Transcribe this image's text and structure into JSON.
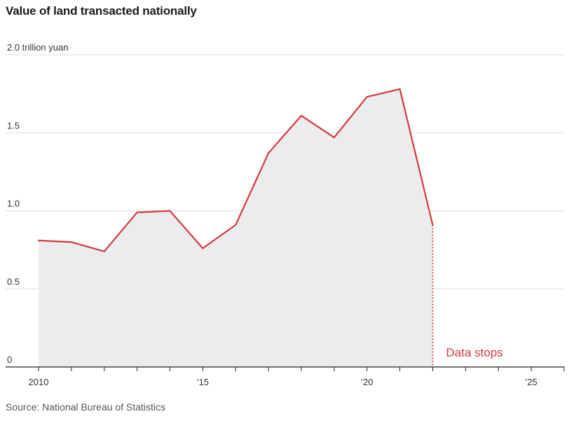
{
  "title": "Value of land transacted nationally",
  "source": "Source: National Bureau of Statistics",
  "colors": {
    "line": "#d23a3f",
    "area": "#ececee",
    "grid": "#dddddd",
    "axis": "#222222"
  },
  "chart_data": {
    "type": "area",
    "title": "Value of land transacted nationally",
    "ylabel": "trillion yuan",
    "ylim": [
      0,
      2.0
    ],
    "xlim": [
      2010,
      2026
    ],
    "y_ticks": [
      {
        "value": 0,
        "label": "0"
      },
      {
        "value": 0.5,
        "label": "0.5"
      },
      {
        "value": 1.0,
        "label": "1.0"
      },
      {
        "value": 1.5,
        "label": "1.5"
      },
      {
        "value": 2.0,
        "label": "2.0 trillion yuan"
      }
    ],
    "x_ticks": [
      {
        "value": 2010,
        "label": "2010"
      },
      {
        "value": 2015,
        "label": "’15"
      },
      {
        "value": 2020,
        "label": "’20"
      },
      {
        "value": 2025,
        "label": "’25"
      }
    ],
    "grid": true,
    "series": [
      {
        "x": [
          2010,
          2011,
          2012,
          2013,
          2014,
          2015,
          2016,
          2017,
          2018,
          2019,
          2020,
          2021,
          2022
        ],
        "values": [
          0.81,
          0.8,
          0.74,
          0.99,
          1.0,
          0.76,
          0.91,
          1.37,
          1.61,
          1.47,
          1.73,
          1.78,
          0.91
        ]
      }
    ],
    "annotation": {
      "text": "Data stops",
      "x": 2022
    }
  }
}
